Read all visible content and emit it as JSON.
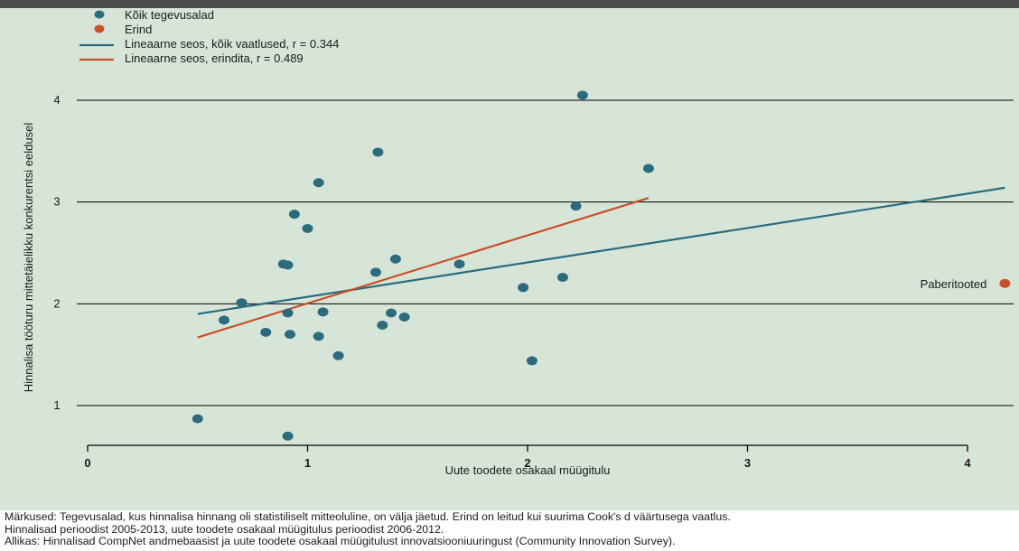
{
  "colors": {
    "background": "#d7e5d9",
    "topbar": "#4d4d4f",
    "points": "#2c6b7d",
    "outlier": "#c8502a",
    "line_all": "#2c6b7d",
    "line_no_outlier": "#c8502a",
    "grid": "#000000"
  },
  "icons": {
    "legend_point": "filled-circle",
    "legend_line": "horizontal-line"
  },
  "notes": {
    "line1": "Märkused: Tegevusalad, kus hinnalisa hinnang oli statistiliselt mitteoluline, on välja jäetud. Erind on leitud kui suurima Cook's d väärtusega vaatlus.",
    "line2": "Hinnalisad perioodist 2005-2013, uute toodete osakaal müügitulus perioodist 2006-2012.",
    "line3": "Allikas: Hinnalisad CompNet andmebaasist ja uute toodete osakaal müügitulust innovatsiooniuuringust (Community Innovation Survey)."
  },
  "chart_data": {
    "type": "scatter",
    "title": "",
    "xlabel": "Uute toodete osakaal müügitulu",
    "ylabel": "Hinnalisa tööturu mittetäielikku konkurentsi eeldusel",
    "xlim": [
      0,
      4.2
    ],
    "ylim": [
      0.55,
      4.3
    ],
    "xticks": [
      0,
      1,
      2,
      3,
      4
    ],
    "yticks": [
      1,
      2,
      3,
      4
    ],
    "grid": "horizontal",
    "legend": {
      "position": "top-left",
      "items": [
        {
          "label": "Kõik tegevusalad",
          "kind": "point",
          "color": "#2c6b7d"
        },
        {
          "label": "Erind",
          "kind": "point",
          "color": "#c8502a"
        },
        {
          "label": "Lineaarne seos, kõik vaatlused, r = 0.344",
          "kind": "line",
          "color": "#2c6b7d"
        },
        {
          "label": "Lineaarne seos, erindita, r = 0.489",
          "kind": "line",
          "color": "#c8502a"
        }
      ]
    },
    "series": [
      {
        "name": "Kõik tegevusalad",
        "kind": "scatter",
        "color": "#2c6b7d",
        "points": [
          {
            "x": 0.5,
            "y": 0.87
          },
          {
            "x": 0.62,
            "y": 1.84
          },
          {
            "x": 0.7,
            "y": 2.01
          },
          {
            "x": 0.81,
            "y": 1.72
          },
          {
            "x": 0.89,
            "y": 2.39
          },
          {
            "x": 0.91,
            "y": 2.38
          },
          {
            "x": 0.91,
            "y": 1.91
          },
          {
            "x": 0.92,
            "y": 1.7
          },
          {
            "x": 0.94,
            "y": 2.88
          },
          {
            "x": 1.0,
            "y": 2.74
          },
          {
            "x": 1.05,
            "y": 3.19
          },
          {
            "x": 1.05,
            "y": 1.68
          },
          {
            "x": 1.07,
            "y": 1.92
          },
          {
            "x": 1.14,
            "y": 1.49
          },
          {
            "x": 1.31,
            "y": 2.31
          },
          {
            "x": 1.32,
            "y": 3.49
          },
          {
            "x": 1.34,
            "y": 1.79
          },
          {
            "x": 1.38,
            "y": 1.91
          },
          {
            "x": 1.4,
            "y": 2.44
          },
          {
            "x": 1.44,
            "y": 1.87
          },
          {
            "x": 1.69,
            "y": 2.39
          },
          {
            "x": 1.98,
            "y": 2.16
          },
          {
            "x": 2.02,
            "y": 1.44
          },
          {
            "x": 2.16,
            "y": 2.26
          },
          {
            "x": 2.22,
            "y": 2.96
          },
          {
            "x": 2.25,
            "y": 4.05
          },
          {
            "x": 2.55,
            "y": 3.33
          },
          {
            "x": 0.91,
            "y": 0.7
          }
        ]
      },
      {
        "name": "Erind",
        "kind": "scatter",
        "color": "#c8502a",
        "points": [
          {
            "x": 4.17,
            "y": 2.2,
            "label": "Paberitooted"
          }
        ]
      },
      {
        "name": "Lineaarne seos, kõik vaatlused, r = 0.344",
        "kind": "line",
        "color": "#2c6b7d",
        "points": [
          {
            "x": 0.5,
            "y": 1.9
          },
          {
            "x": 4.17,
            "y": 3.14
          }
        ]
      },
      {
        "name": "Lineaarne seos, erindita, r = 0.489",
        "kind": "line",
        "color": "#c8502a",
        "points": [
          {
            "x": 0.5,
            "y": 1.67
          },
          {
            "x": 2.55,
            "y": 3.04
          }
        ]
      }
    ]
  }
}
